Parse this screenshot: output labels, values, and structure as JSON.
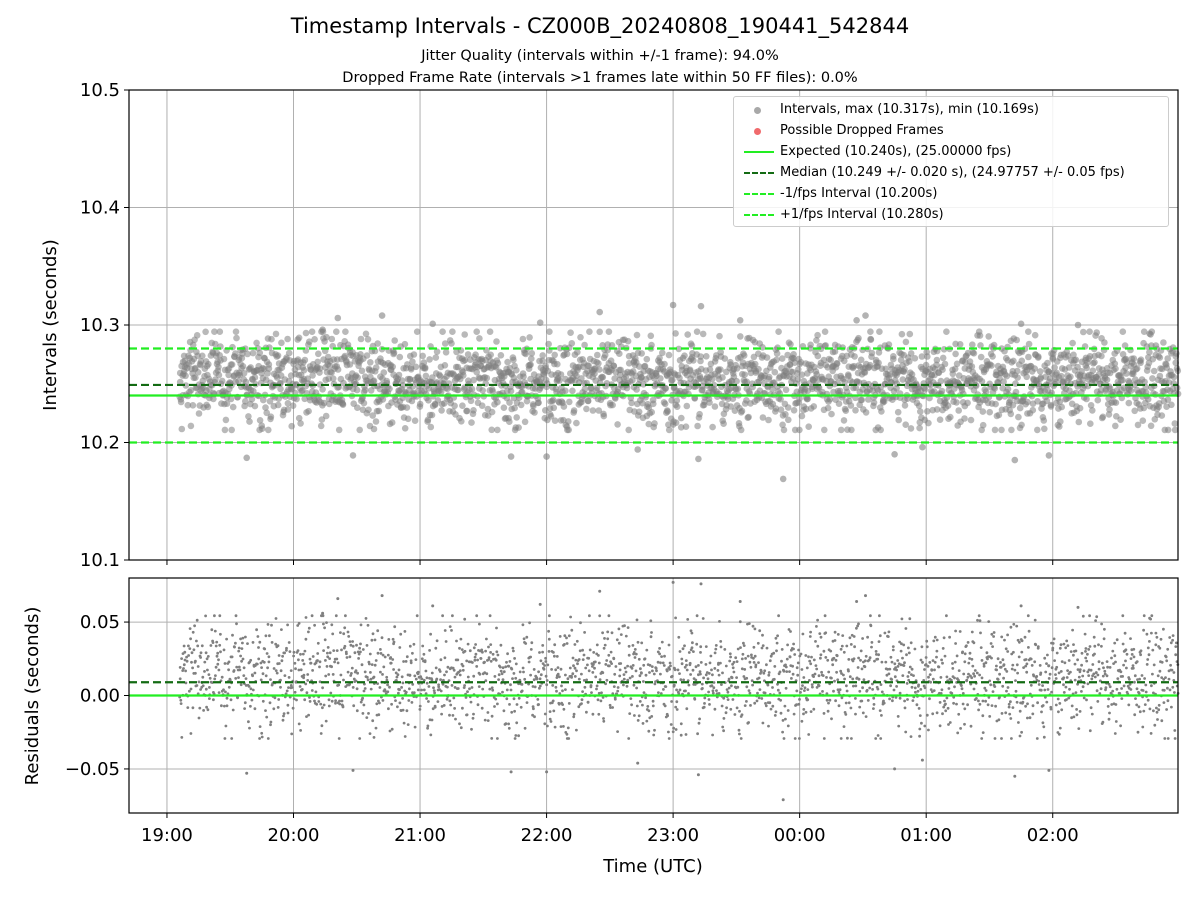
{
  "title": "Timestamp Intervals - CZ000B_20240808_190441_542844",
  "subtitle1": "Jitter Quality (intervals within +/-1 frame): 94.0%",
  "subtitle2": "Dropped Frame Rate (intervals >1 frames late within 50 FF files): 0.0%",
  "colors": {
    "points": "#808080",
    "dropped": "#f0484a",
    "expected": "#22ee22",
    "median": "#136b13",
    "interval": "#22ee22",
    "grid": "#b0b0b0"
  },
  "legend": {
    "intervals": "Intervals, max (10.317s), min (10.169s)",
    "dropped": "Possible Dropped Frames",
    "expected": "Expected (10.240s), (25.00000 fps)",
    "median": "Median (10.249 +/- 0.020 s), (24.97757 +/- 0.05 fps)",
    "minus": "-1/fps Interval (10.200s)",
    "plus": "+1/fps Interval (10.280s)"
  },
  "chart_data": [
    {
      "type": "scatter",
      "name": "intervals",
      "ylabel": "Intervals (seconds)",
      "ylim": [
        10.1,
        10.5
      ],
      "yticks": [
        10.1,
        10.2,
        10.3,
        10.4,
        10.5
      ],
      "ytick_labels": [
        "10.1",
        "10.2",
        "10.3",
        "10.4",
        "10.5"
      ],
      "xlim_hours": [
        18.7,
        26.99
      ],
      "hlines": [
        {
          "name": "expected",
          "y": 10.24,
          "style": "solid"
        },
        {
          "name": "median",
          "y": 10.249,
          "style": "dashed"
        },
        {
          "name": "minus-1-fps",
          "y": 10.2,
          "style": "dashed"
        },
        {
          "name": "plus-1-fps",
          "y": 10.28,
          "style": "dashed"
        }
      ],
      "series_summary": {
        "points": 2500,
        "t_start_hours": 19.1,
        "t_end_hours": 26.99,
        "center": 10.2525,
        "spread": 0.02,
        "max": 10.317,
        "min": 10.169
      },
      "outliers": [
        {
          "t": 19.63,
          "y": 10.187
        },
        {
          "t": 20.23,
          "y": 10.296
        },
        {
          "t": 20.35,
          "y": 10.306
        },
        {
          "t": 20.47,
          "y": 10.189
        },
        {
          "t": 20.7,
          "y": 10.308
        },
        {
          "t": 21.1,
          "y": 10.301
        },
        {
          "t": 21.72,
          "y": 10.188
        },
        {
          "t": 21.95,
          "y": 10.302
        },
        {
          "t": 22.0,
          "y": 10.188
        },
        {
          "t": 22.42,
          "y": 10.311
        },
        {
          "t": 22.72,
          "y": 10.194
        },
        {
          "t": 23.0,
          "y": 10.317
        },
        {
          "t": 23.22,
          "y": 10.316
        },
        {
          "t": 23.2,
          "y": 10.186
        },
        {
          "t": 23.53,
          "y": 10.304
        },
        {
          "t": 23.87,
          "y": 10.169
        },
        {
          "t": 24.45,
          "y": 10.304
        },
        {
          "t": 24.52,
          "y": 10.308
        },
        {
          "t": 24.75,
          "y": 10.19
        },
        {
          "t": 24.97,
          "y": 10.196
        },
        {
          "t": 25.7,
          "y": 10.185
        },
        {
          "t": 25.75,
          "y": 10.301
        },
        {
          "t": 25.97,
          "y": 10.189
        },
        {
          "t": 26.2,
          "y": 10.3
        }
      ]
    },
    {
      "type": "scatter",
      "name": "residuals",
      "xlabel": "Time (UTC)",
      "ylabel": "Residuals (seconds)",
      "ylim": [
        -0.08,
        0.08
      ],
      "yticks": [
        -0.05,
        0.0,
        0.05
      ],
      "ytick_labels": [
        "−0.05",
        "0.00",
        "0.05"
      ],
      "xlim_hours": [
        18.7,
        26.99
      ],
      "xticks_hours": [
        19,
        20,
        21,
        22,
        23,
        24,
        25,
        26
      ],
      "xtick_labels": [
        "19:00",
        "20:00",
        "21:00",
        "22:00",
        "23:00",
        "00:00",
        "01:00",
        "02:00"
      ],
      "hlines": [
        {
          "name": "expected",
          "y": 0.0,
          "style": "solid"
        },
        {
          "name": "median",
          "y": 0.009,
          "style": "dashed"
        }
      ],
      "series_summary": {
        "points": 2500,
        "center": 0.0125,
        "spread": 0.02,
        "max": 0.077,
        "min": -0.071
      }
    }
  ]
}
